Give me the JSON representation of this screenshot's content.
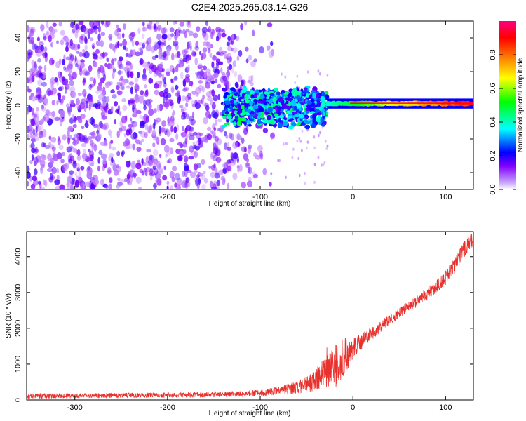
{
  "figure": {
    "title": "C2E4.2025.265.03.14.G26"
  },
  "chart_data": [
    {
      "type": "heatmap",
      "xlabel": "Height of straight line (km)",
      "ylabel": "Frequency (Hz)",
      "xlim": [
        -352,
        130
      ],
      "ylim": [
        -50,
        50
      ],
      "x_ticks": [
        -300,
        -200,
        -100,
        0,
        100
      ],
      "y_ticks": [
        -40,
        -20,
        0,
        20,
        40
      ],
      "colorbar": {
        "label": "Normalized spectral amplitude",
        "range": [
          0,
          1
        ],
        "ticks": [
          0.0,
          0.2,
          0.4,
          0.6,
          0.8
        ],
        "colormap": [
          "#ffffff",
          "#8000ff",
          "#0000ff",
          "#00ffff",
          "#00ff00",
          "#ffff00",
          "#ff8000",
          "#ff0000",
          "#ff00a0"
        ]
      },
      "regions": [
        {
          "x": [
            -352,
            -140
          ],
          "freq": [
            -50,
            50
          ],
          "amplitude": [
            0.05,
            0.2
          ]
        },
        {
          "x": [
            -140,
            -28
          ],
          "freq": [
            -15,
            10
          ],
          "amplitude": [
            0.15,
            0.45
          ]
        },
        {
          "x": [
            -28,
            130
          ],
          "freq": [
            -2,
            4
          ],
          "amplitude": [
            0.4,
            0.95
          ]
        }
      ]
    },
    {
      "type": "line",
      "xlabel": "Height of straight line (km)",
      "ylabel": "SNR (10 * v/v)",
      "xlim": [
        -352,
        130
      ],
      "ylim": [
        0,
        4700
      ],
      "x_ticks": [
        -300,
        -200,
        -100,
        0,
        100
      ],
      "y_ticks": [
        0,
        1000,
        2000,
        3000,
        4000
      ],
      "line_color": "#e8302c",
      "series": [
        {
          "x": [
            -350,
            -300,
            -250,
            -200,
            -150,
            -120,
            -100,
            -80,
            -60,
            -45,
            -35,
            -25,
            -18,
            -12,
            -5,
            0,
            10,
            20,
            40,
            60,
            80,
            100,
            110,
            120,
            130
          ],
          "values": [
            110,
            120,
            130,
            140,
            150,
            170,
            200,
            260,
            350,
            480,
            650,
            850,
            1000,
            1150,
            1300,
            1450,
            1650,
            1850,
            2250,
            2600,
            2950,
            3400,
            3750,
            4200,
            4550
          ],
          "spread": [
            70,
            70,
            70,
            70,
            75,
            80,
            90,
            120,
            180,
            260,
            380,
            550,
            700,
            600,
            420,
            300,
            220,
            180,
            150,
            150,
            170,
            200,
            220,
            240,
            250
          ]
        }
      ]
    }
  ]
}
